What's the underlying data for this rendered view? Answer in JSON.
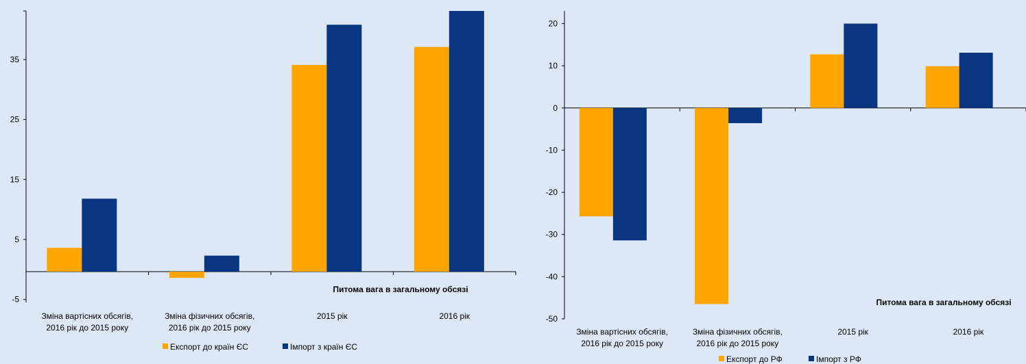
{
  "chart_data": [
    {
      "type": "bar",
      "categories": [
        [
          "Зміна вартісних обсягів,",
          "2016 рік до 2015 року"
        ],
        [
          "Зміна фізичних обсягів,",
          "2016 рік до 2015 року"
        ],
        [
          "2015 рік"
        ],
        [
          "2016 рік"
        ]
      ],
      "series": [
        {
          "name": "Експорт до країн ЄС",
          "values": [
            3.6,
            -1.4,
            34.1,
            37.1
          ],
          "color": "#ffa500"
        },
        {
          "name": "Імпорт з країн ЄС",
          "values": [
            11.8,
            2.3,
            40.8,
            43.1
          ],
          "color": "#0a3580"
        }
      ],
      "annotation": "Питома вага в загальному обсязі",
      "yticks": [
        -5,
        5,
        15,
        25,
        35
      ],
      "ylim": [
        -5.5,
        43.1
      ],
      "legend_position": "bottom"
    },
    {
      "type": "bar",
      "categories": [
        [
          "Зміна вартісних обсягів,",
          "2016 рік до 2015 року"
        ],
        [
          "Зміна фізичних обсягів,",
          "2016 рік до 2015 року"
        ],
        [
          "2015 рік"
        ],
        [
          "2016 рік"
        ]
      ],
      "series": [
        {
          "name": "Експорт до РФ",
          "values": [
            -25.7,
            -46.5,
            12.7,
            9.9
          ],
          "color": "#ffa500"
        },
        {
          "name": "Імпорт з РФ",
          "values": [
            -31.4,
            -3.6,
            20.0,
            13.1
          ],
          "color": "#0a3580"
        }
      ],
      "annotation": "Питома вага в загальному обсязі",
      "yticks": [
        -50,
        -40,
        -30,
        -20,
        -10,
        0,
        10,
        20
      ],
      "ylim": [
        -50,
        23
      ],
      "legend_position": "bottom"
    }
  ]
}
